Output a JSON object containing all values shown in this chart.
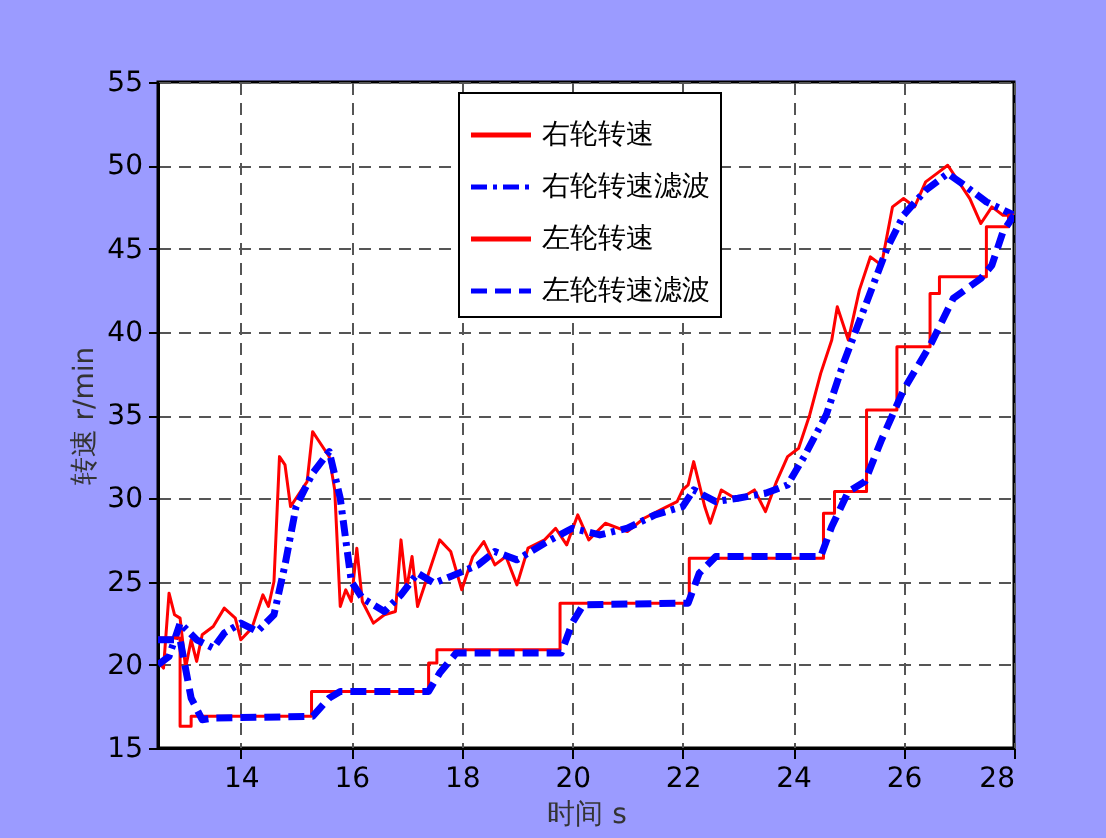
{
  "chart_data": {
    "type": "line",
    "xlabel": "时间 s",
    "ylabel": "转速 r/min",
    "xlim": [
      12.5,
      28
    ],
    "xticks": [
      14,
      16,
      18,
      20,
      22,
      24,
      26,
      28
    ],
    "ylim": [
      15,
      55
    ],
    "yticks": [
      15,
      20,
      25,
      30,
      35,
      40,
      45,
      50,
      55
    ],
    "grid": true,
    "legend": "top",
    "marker": "none",
    "series": [
      {
        "name": "右轮转速",
        "color": "#ff0000",
        "line_style": "solid",
        "type": "line",
        "x": [
          12.5,
          12.6,
          12.7,
          12.8,
          12.9,
          13.0,
          13.1,
          13.2,
          13.3,
          13.5,
          13.7,
          13.9,
          14.0,
          14.2,
          14.4,
          14.5,
          14.6,
          14.7,
          14.8,
          14.9,
          15.0,
          15.2,
          15.3,
          15.4,
          15.6,
          15.7,
          15.8,
          15.9,
          16.0,
          16.1,
          16.2,
          16.4,
          16.6,
          16.8,
          16.9,
          17.0,
          17.1,
          17.2,
          17.4,
          17.6,
          17.8,
          18.0,
          18.2,
          18.4,
          18.6,
          18.8,
          19.0,
          19.2,
          19.5,
          19.7,
          19.9,
          20.1,
          20.3,
          20.6,
          21.0,
          21.3,
          21.6,
          21.9,
          22.0,
          22.1,
          22.2,
          22.4,
          22.5,
          22.7,
          23.0,
          23.3,
          23.5,
          23.7,
          23.9,
          24.1,
          24.3,
          24.5,
          24.7,
          24.8,
          25.0,
          25.2,
          25.4,
          25.6,
          25.8,
          26.0,
          26.2,
          26.4,
          26.6,
          26.8,
          27.0,
          27.2,
          27.4,
          27.6,
          27.8,
          28.0
        ],
        "values": [
          20.2,
          19.8,
          24.3,
          23,
          22.8,
          19.8,
          21.5,
          20.2,
          21.8,
          22.3,
          23.4,
          22.8,
          21.5,
          22.2,
          24.2,
          23.5,
          25,
          32.5,
          32,
          29.5,
          30,
          31,
          34,
          33.5,
          32.5,
          30.5,
          23.5,
          24.5,
          23.8,
          27,
          23.8,
          22.5,
          23,
          23.2,
          27.5,
          24.5,
          26.5,
          23.5,
          25.5,
          27.5,
          26.8,
          24.5,
          26.5,
          27.4,
          26,
          26.5,
          24.8,
          27,
          27.5,
          28.2,
          27.2,
          29,
          27.5,
          28.5,
          28,
          28.8,
          29.3,
          29.8,
          30.5,
          30.8,
          32.2,
          29.5,
          28.5,
          30.5,
          29.9,
          30.5,
          29.2,
          31,
          32.5,
          33,
          35,
          37.5,
          39.5,
          41.5,
          39.5,
          42.5,
          44.5,
          44,
          47.5,
          48,
          47.5,
          49,
          49.5,
          50,
          49,
          48,
          46.5,
          47.5,
          47,
          47
        ]
      },
      {
        "name": "右轮转速滤波",
        "color": "#0000ff",
        "line_style": "dashdot",
        "type": "line",
        "x": [
          12.5,
          12.7,
          12.9,
          13.2,
          13.5,
          13.7,
          14.0,
          14.3,
          14.6,
          14.8,
          15.0,
          15.3,
          15.6,
          15.8,
          16.0,
          16.2,
          16.6,
          16.9,
          17.2,
          17.5,
          17.8,
          18.3,
          18.6,
          19.0,
          19.5,
          20.0,
          20.5,
          21.0,
          21.5,
          22.0,
          22.2,
          22.6,
          23.0,
          23.5,
          23.9,
          24.2,
          24.6,
          24.9,
          25.3,
          25.7,
          26.0,
          26.4,
          26.8,
          27.1,
          27.5,
          28.0
        ],
        "values": [
          20,
          20.5,
          22.5,
          21.5,
          21,
          21.9,
          22.5,
          22,
          23,
          26,
          29.5,
          31.5,
          32.8,
          30,
          25,
          24,
          23.2,
          24.2,
          25.5,
          24.9,
          25.3,
          26,
          26.8,
          26.3,
          27.3,
          28.2,
          27.8,
          28.2,
          29,
          29.5,
          30.5,
          29.8,
          30,
          30.3,
          30.8,
          32.5,
          35,
          38,
          41.5,
          45,
          47,
          48.5,
          49.5,
          48.8,
          47.8,
          47
        ]
      },
      {
        "name": "左轮转速",
        "color": "#ff0000",
        "line_style": "solid",
        "type": "step",
        "x": [
          12.5,
          12.9,
          13.1,
          15.28,
          17.4,
          17.55,
          19.78,
          22.12,
          24.55,
          24.75,
          25.33,
          25.88,
          26.48,
          26.65,
          27.5,
          27.9,
          28.0
        ],
        "values": [
          21.6,
          16.3,
          16.9,
          18.4,
          20.1,
          20.9,
          23.7,
          26.4,
          29.1,
          30.4,
          35.3,
          39.1,
          42.3,
          43.3,
          46.3,
          47,
          47
        ]
      },
      {
        "name": "左轮转速滤波",
        "color": "#0000ff",
        "line_style": "dashed",
        "type": "line",
        "x": [
          12.5,
          12.9,
          13.1,
          13.3,
          13.5,
          15.3,
          15.6,
          15.8,
          17.4,
          17.6,
          17.9,
          19.8,
          20.0,
          20.2,
          22.1,
          22.3,
          22.6,
          24.5,
          24.7,
          25.0,
          25.3,
          25.6,
          26.0,
          26.5,
          26.9,
          27.4,
          27.6,
          27.8,
          28.0
        ],
        "values": [
          21.5,
          21.5,
          18,
          16.7,
          16.8,
          16.9,
          18,
          18.4,
          18.4,
          19.5,
          20.7,
          20.7,
          22.5,
          23.6,
          23.7,
          25.5,
          26.5,
          26.5,
          28.3,
          30.4,
          31,
          33.5,
          36.5,
          39.3,
          42,
          43.2,
          44,
          46,
          47
        ]
      }
    ]
  }
}
